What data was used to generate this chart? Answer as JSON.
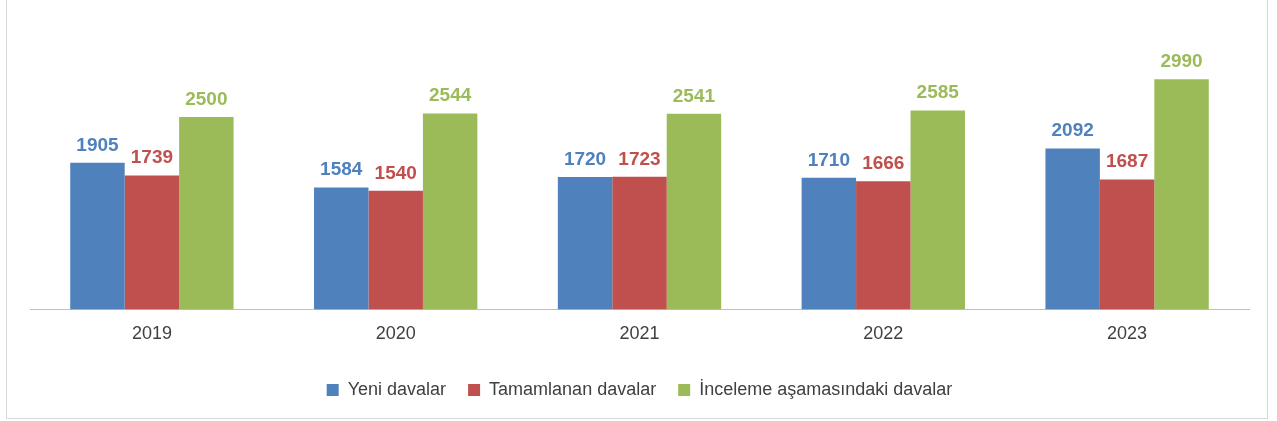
{
  "chart_data": {
    "type": "bar",
    "categories": [
      "2019",
      "2020",
      "2021",
      "2022",
      "2023"
    ],
    "series": [
      {
        "name": "Yeni davalar",
        "color": "#4f81bd",
        "values": [
          1905,
          1584,
          1720,
          1710,
          2092
        ]
      },
      {
        "name": "Tamamlanan davalar",
        "color": "#c0504d",
        "values": [
          1739,
          1540,
          1723,
          1666,
          1687
        ]
      },
      {
        "name": "İnceleme aşamasındaki davalar",
        "color": "#9bbb59",
        "values": [
          2500,
          2544,
          2541,
          2585,
          2990
        ]
      }
    ],
    "data_labels": true,
    "legend": "bottom",
    "grid": false
  }
}
